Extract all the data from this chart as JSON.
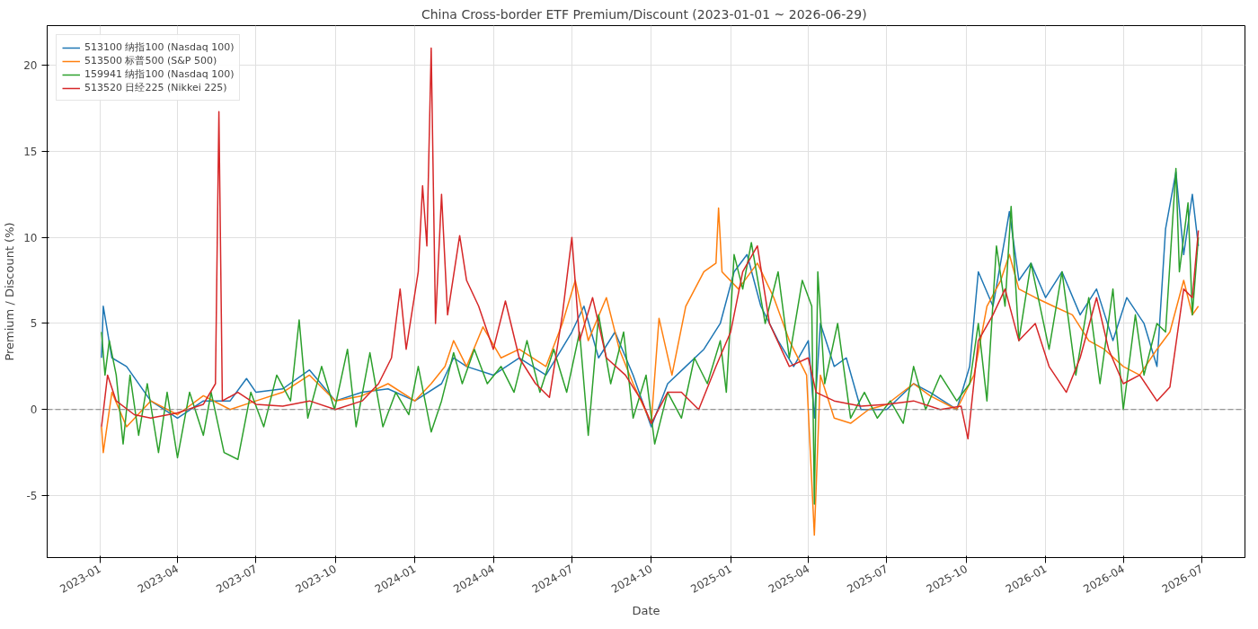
{
  "chart_data": {
    "type": "line",
    "title": "China Cross-border ETF Premium/Discount  (2023-01-01 ~ 2026-06-29)",
    "xlabel": "Date",
    "ylabel": "Premium / Discount (%)",
    "xlim": [
      "2022-11-01",
      "2026-08-20"
    ],
    "ylim": [
      -8.6,
      22.3
    ],
    "yticks": [
      -5,
      0,
      5,
      10,
      15,
      20
    ],
    "xticks": [
      {
        "value": "2023-01-01",
        "label": "2023-01"
      },
      {
        "value": "2023-04-01",
        "label": "2023-04"
      },
      {
        "value": "2023-07-01",
        "label": "2023-07"
      },
      {
        "value": "2023-10-01",
        "label": "2023-10"
      },
      {
        "value": "2024-01-01",
        "label": "2024-01"
      },
      {
        "value": "2024-04-01",
        "label": "2024-04"
      },
      {
        "value": "2024-07-01",
        "label": "2024-07"
      },
      {
        "value": "2024-10-01",
        "label": "2024-10"
      },
      {
        "value": "2025-01-01",
        "label": "2025-01"
      },
      {
        "value": "2025-04-01",
        "label": "2025-04"
      },
      {
        "value": "2025-07-01",
        "label": "2025-07"
      },
      {
        "value": "2025-10-01",
        "label": "2025-10"
      },
      {
        "value": "2026-01-01",
        "label": "2026-01"
      },
      {
        "value": "2026-04-01",
        "label": "2026-04"
      },
      {
        "value": "2026-07-01",
        "label": "2026-07"
      }
    ],
    "grid": true,
    "legend": "top left",
    "line_style": "solid",
    "ref_lines": [
      {
        "axis": "y",
        "value": 0,
        "label": null,
        "color": "#808080",
        "line_style": "dashed"
      }
    ],
    "series": [
      {
        "name": "513100 纳指100 (Nasdaq 100)",
        "color": "#1f77b4",
        "x": [
          "2023-01-03",
          "2023-01-05",
          "2023-01-15",
          "2023-02-01",
          "2023-03-01",
          "2023-04-01",
          "2023-05-01",
          "2023-06-01",
          "2023-06-20",
          "2023-07-01",
          "2023-08-01",
          "2023-09-01",
          "2023-10-01",
          "2023-11-01",
          "2023-12-01",
          "2024-01-01",
          "2024-02-01",
          "2024-02-15",
          "2024-03-01",
          "2024-04-01",
          "2024-05-01",
          "2024-06-01",
          "2024-07-01",
          "2024-07-15",
          "2024-08-01",
          "2024-08-20",
          "2024-09-10",
          "2024-10-01",
          "2024-10-20",
          "2024-11-10",
          "2024-12-01",
          "2024-12-20",
          "2025-01-05",
          "2025-01-20",
          "2025-02-05",
          "2025-02-25",
          "2025-03-15",
          "2025-04-01",
          "2025-04-08",
          "2025-04-15",
          "2025-05-01",
          "2025-05-15",
          "2025-06-01",
          "2025-07-01",
          "2025-08-01",
          "2025-08-20",
          "2025-09-20",
          "2025-10-05",
          "2025-10-15",
          "2025-11-01",
          "2025-11-15",
          "2025-11-20",
          "2025-12-01",
          "2025-12-15",
          "2026-01-01",
          "2026-01-20",
          "2026-02-10",
          "2026-03-01",
          "2026-03-20",
          "2026-04-05",
          "2026-04-25",
          "2026-05-10",
          "2026-05-20",
          "2026-06-01",
          "2026-06-10",
          "2026-06-20",
          "2026-06-27"
        ],
        "values": [
          3.0,
          6.0,
          3.0,
          2.5,
          0.5,
          -0.5,
          0.5,
          0.5,
          1.8,
          1.0,
          1.2,
          2.3,
          0.5,
          1.0,
          1.2,
          0.5,
          1.5,
          3.0,
          2.5,
          2.0,
          3.0,
          2.0,
          4.5,
          6.0,
          3.0,
          4.5,
          2.0,
          -1.0,
          1.5,
          2.5,
          3.5,
          5.0,
          8.0,
          9.0,
          6.0,
          4.0,
          2.5,
          4.0,
          -0.5,
          5.0,
          2.5,
          3.0,
          0.0,
          0.0,
          1.5,
          1.0,
          0.0,
          2.5,
          8.0,
          6.0,
          10.0,
          11.5,
          7.5,
          8.5,
          6.5,
          8.0,
          5.5,
          7.0,
          4.0,
          6.5,
          5.0,
          2.5,
          10.5,
          13.8,
          9.0,
          12.5,
          9.5
        ]
      },
      {
        "name": "513500 标普500 (S&P 500)",
        "color": "#ff7f0e",
        "x": [
          "2023-01-03",
          "2023-01-05",
          "2023-01-15",
          "2023-02-01",
          "2023-03-01",
          "2023-04-01",
          "2023-05-01",
          "2023-06-01",
          "2023-07-01",
          "2023-08-01",
          "2023-09-01",
          "2023-10-01",
          "2023-11-01",
          "2023-12-01",
          "2024-01-01",
          "2024-01-20",
          "2024-02-05",
          "2024-02-15",
          "2024-03-01",
          "2024-03-20",
          "2024-04-10",
          "2024-05-01",
          "2024-06-01",
          "2024-06-20",
          "2024-07-05",
          "2024-07-20",
          "2024-08-10",
          "2024-08-25",
          "2024-09-10",
          "2024-10-01",
          "2024-10-10",
          "2024-10-25",
          "2024-11-10",
          "2024-12-01",
          "2024-12-15",
          "2024-12-18",
          "2024-12-22",
          "2025-01-10",
          "2025-02-01",
          "2025-02-20",
          "2025-03-10",
          "2025-03-30",
          "2025-04-08",
          "2025-04-15",
          "2025-05-01",
          "2025-05-20",
          "2025-06-10",
          "2025-07-01",
          "2025-08-01",
          "2025-08-20",
          "2025-09-20",
          "2025-10-10",
          "2025-10-25",
          "2025-11-10",
          "2025-11-20",
          "2025-12-01",
          "2025-12-20",
          "2026-01-10",
          "2026-02-01",
          "2026-02-20",
          "2026-03-10",
          "2026-04-01",
          "2026-04-20",
          "2026-05-10",
          "2026-05-25",
          "2026-06-10",
          "2026-06-20",
          "2026-06-27"
        ],
        "values": [
          -1.0,
          -2.5,
          1.0,
          -1.0,
          0.5,
          -0.3,
          0.8,
          0.0,
          0.5,
          1.0,
          2.0,
          0.5,
          0.8,
          1.5,
          0.5,
          1.5,
          2.5,
          4.0,
          2.5,
          4.8,
          3.0,
          3.5,
          2.5,
          5.0,
          7.5,
          4.0,
          6.5,
          3.5,
          1.5,
          -0.8,
          5.3,
          2.0,
          6.0,
          8.0,
          8.5,
          11.7,
          8.0,
          7.0,
          8.5,
          6.5,
          4.0,
          2.0,
          -7.3,
          2.0,
          -0.5,
          -0.8,
          0.0,
          0.3,
          1.5,
          0.8,
          0.0,
          2.0,
          6.0,
          7.5,
          9.0,
          7.0,
          6.5,
          6.0,
          5.5,
          4.0,
          3.5,
          2.5,
          2.0,
          3.5,
          4.5,
          7.5,
          5.5,
          6.0
        ]
      },
      {
        "name": "159941 纳指100 (Nasdaq 100)",
        "color": "#2ca02c",
        "x": [
          "2023-01-03",
          "2023-01-07",
          "2023-01-12",
          "2023-01-20",
          "2023-01-28",
          "2023-02-05",
          "2023-02-15",
          "2023-02-25",
          "2023-03-10",
          "2023-03-20",
          "2023-04-01",
          "2023-04-15",
          "2023-05-01",
          "2023-05-10",
          "2023-05-25",
          "2023-06-10",
          "2023-06-25",
          "2023-07-10",
          "2023-07-25",
          "2023-08-10",
          "2023-08-20",
          "2023-08-30",
          "2023-09-15",
          "2023-09-30",
          "2023-10-15",
          "2023-10-25",
          "2023-11-10",
          "2023-11-25",
          "2023-12-10",
          "2023-12-25",
          "2024-01-05",
          "2024-01-20",
          "2024-02-01",
          "2024-02-15",
          "2024-02-25",
          "2024-03-10",
          "2024-03-25",
          "2024-04-10",
          "2024-04-25",
          "2024-05-10",
          "2024-05-25",
          "2024-06-10",
          "2024-06-25",
          "2024-07-10",
          "2024-07-20",
          "2024-08-01",
          "2024-08-15",
          "2024-08-30",
          "2024-09-10",
          "2024-09-25",
          "2024-10-05",
          "2024-10-20",
          "2024-11-05",
          "2024-11-20",
          "2024-12-05",
          "2024-12-20",
          "2024-12-27",
          "2025-01-05",
          "2025-01-15",
          "2025-01-25",
          "2025-02-10",
          "2025-02-25",
          "2025-03-10",
          "2025-03-25",
          "2025-04-05",
          "2025-04-08",
          "2025-04-12",
          "2025-04-20",
          "2025-05-05",
          "2025-05-20",
          "2025-06-05",
          "2025-06-20",
          "2025-07-05",
          "2025-07-20",
          "2025-08-01",
          "2025-08-15",
          "2025-09-01",
          "2025-09-20",
          "2025-10-05",
          "2025-10-15",
          "2025-10-25",
          "2025-11-05",
          "2025-11-15",
          "2025-11-22",
          "2025-12-01",
          "2025-12-15",
          "2026-01-05",
          "2026-01-20",
          "2026-02-05",
          "2026-02-20",
          "2026-03-05",
          "2026-03-20",
          "2026-04-01",
          "2026-04-15",
          "2026-04-25",
          "2026-05-10",
          "2026-05-20",
          "2026-06-01",
          "2026-06-05",
          "2026-06-15",
          "2026-06-20",
          "2026-06-27"
        ],
        "values": [
          4.5,
          2.0,
          4.0,
          2.0,
          -2.0,
          2.0,
          -1.5,
          1.5,
          -2.5,
          1.0,
          -2.8,
          1.0,
          -1.5,
          1.0,
          -2.5,
          -2.9,
          1.0,
          -1.0,
          2.0,
          0.5,
          5.2,
          -0.5,
          2.5,
          0.0,
          3.5,
          -1.0,
          3.3,
          -1.0,
          1.0,
          -0.3,
          2.5,
          -1.3,
          0.5,
          3.3,
          1.5,
          3.5,
          1.5,
          2.5,
          1.0,
          4.0,
          1.0,
          3.5,
          1.0,
          4.5,
          -1.5,
          5.5,
          1.5,
          4.5,
          -0.5,
          2.0,
          -2.0,
          1.0,
          -0.5,
          3.0,
          1.5,
          4.0,
          1.0,
          9.0,
          7.0,
          9.7,
          5.0,
          8.0,
          3.0,
          7.5,
          6.0,
          -5.5,
          8.0,
          1.5,
          5.0,
          -0.5,
          1.0,
          -0.5,
          0.5,
          -0.8,
          2.5,
          0.0,
          2.0,
          0.5,
          1.5,
          5.0,
          0.5,
          9.5,
          6.0,
          11.8,
          4.0,
          8.5,
          3.5,
          8.0,
          2.0,
          6.5,
          1.5,
          7.0,
          0.0,
          5.5,
          2.0,
          5.0,
          4.5,
          14.0,
          8.0,
          12.0,
          5.5,
          10.0
        ]
      },
      {
        "name": "513520 日经225 (Nikkei 225)",
        "color": "#d62728",
        "x": [
          "2023-01-03",
          "2023-01-10",
          "2023-01-20",
          "2023-02-10",
          "2023-03-01",
          "2023-04-01",
          "2023-05-01",
          "2023-05-15",
          "2023-05-19",
          "2023-05-23",
          "2023-06-10",
          "2023-07-01",
          "2023-08-01",
          "2023-09-01",
          "2023-10-01",
          "2023-11-01",
          "2023-11-20",
          "2023-12-05",
          "2023-12-15",
          "2023-12-22",
          "2024-01-05",
          "2024-01-10",
          "2024-01-15",
          "2024-01-20",
          "2024-01-25",
          "2024-02-01",
          "2024-02-08",
          "2024-02-22",
          "2024-03-01",
          "2024-03-15",
          "2024-04-01",
          "2024-04-15",
          "2024-05-01",
          "2024-05-20",
          "2024-06-05",
          "2024-06-20",
          "2024-07-01",
          "2024-07-10",
          "2024-07-25",
          "2024-08-10",
          "2024-09-01",
          "2024-09-20",
          "2024-10-01",
          "2024-10-20",
          "2024-11-05",
          "2024-11-25",
          "2024-12-15",
          "2025-01-01",
          "2025-01-15",
          "2025-02-01",
          "2025-02-15",
          "2025-03-10",
          "2025-04-01",
          "2025-04-10",
          "2025-05-01",
          "2025-06-01",
          "2025-07-01",
          "2025-08-01",
          "2025-09-01",
          "2025-09-25",
          "2025-10-03",
          "2025-10-15",
          "2025-11-01",
          "2025-11-15",
          "2025-12-01",
          "2025-12-20",
          "2026-01-05",
          "2026-01-25",
          "2026-02-10",
          "2026-03-01",
          "2026-03-15",
          "2026-04-01",
          "2026-04-20",
          "2026-05-10",
          "2026-05-25",
          "2026-06-10",
          "2026-06-20",
          "2026-06-27"
        ],
        "values": [
          -1.0,
          2.0,
          0.5,
          -0.3,
          -0.5,
          -0.2,
          0.3,
          1.5,
          17.3,
          0.5,
          1.0,
          0.3,
          0.2,
          0.5,
          0.0,
          0.5,
          1.5,
          3.0,
          7.0,
          3.5,
          8.0,
          13.0,
          9.5,
          21.0,
          5.0,
          12.5,
          5.5,
          10.1,
          7.5,
          6.0,
          3.5,
          6.3,
          3.0,
          1.5,
          0.7,
          5.5,
          10.0,
          4.0,
          6.5,
          3.0,
          2.0,
          0.5,
          -0.8,
          1.0,
          1.0,
          0.0,
          2.5,
          4.5,
          8.0,
          9.5,
          5.0,
          2.5,
          3.0,
          1.0,
          0.5,
          0.2,
          0.3,
          0.5,
          0.0,
          0.2,
          -1.7,
          4.0,
          5.5,
          7.0,
          4.0,
          5.0,
          2.5,
          1.0,
          3.0,
          6.5,
          3.5,
          1.5,
          2.0,
          0.5,
          1.3,
          7.0,
          6.5,
          10.4
        ]
      }
    ]
  }
}
